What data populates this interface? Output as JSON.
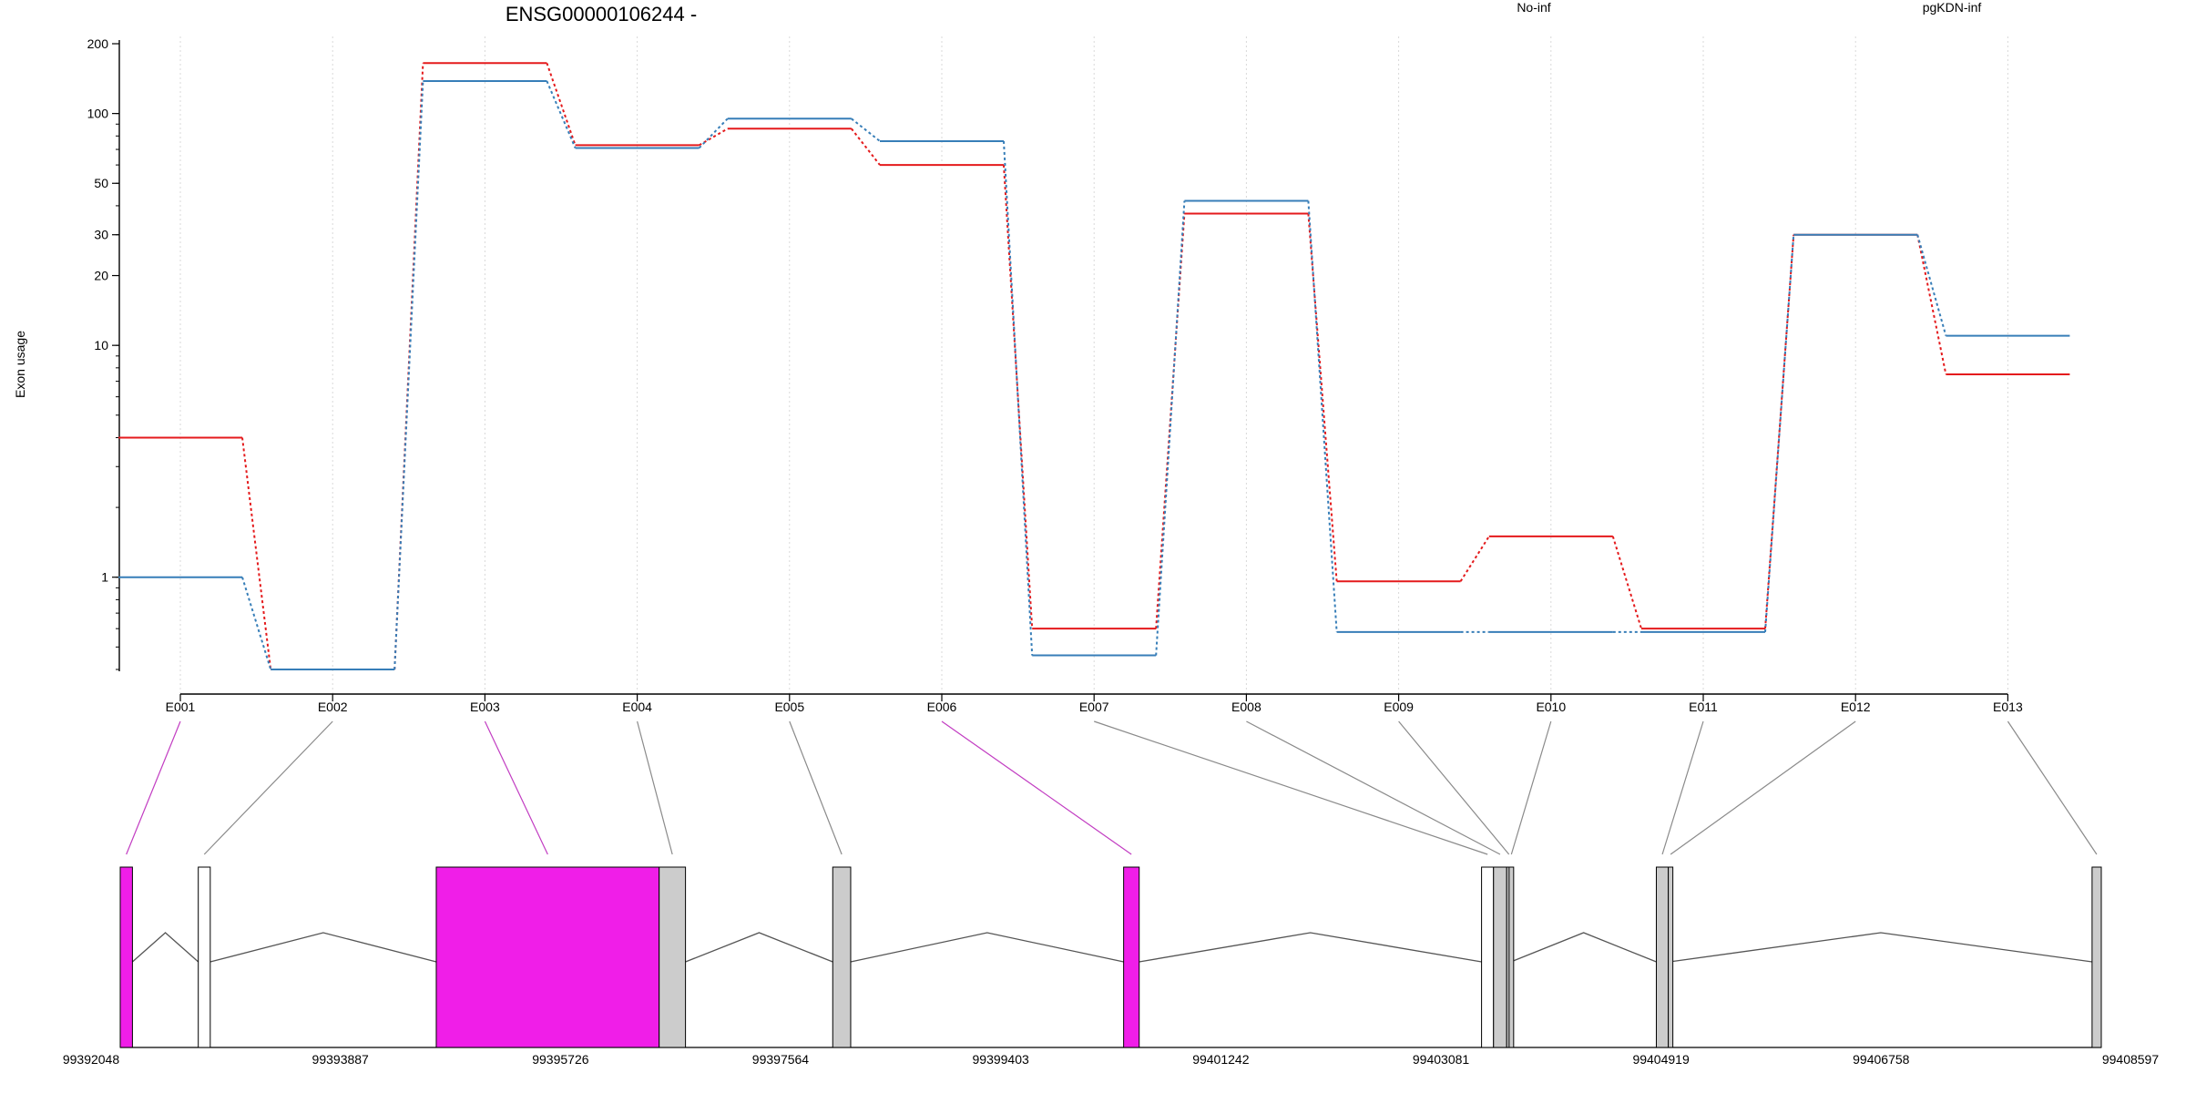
{
  "chart_data": {
    "type": "line",
    "title": "ENSG00000106244 -",
    "ylabel": "Exon usage",
    "xlabel": "",
    "yscale": "log",
    "ylim": [
      0.4,
      200
    ],
    "y_ticks": [
      1,
      10,
      20,
      30,
      50,
      100,
      200
    ],
    "y_tick_labels": [
      "1",
      "10",
      "20",
      "30",
      "50",
      "100",
      "200"
    ],
    "grid": "vertical-dotted",
    "legend_placement": "top",
    "categories": [
      "E001",
      "E002",
      "E003",
      "E004",
      "E005",
      "E006",
      "E007",
      "E008",
      "E009",
      "E010",
      "E011",
      "E012",
      "E013"
    ],
    "series": [
      {
        "name": "No-inf",
        "color": "#e41a1c",
        "values": [
          4.0,
          0.4,
          165,
          73,
          86,
          60,
          0.6,
          37,
          0.96,
          1.5,
          0.6,
          30,
          7.5
        ]
      },
      {
        "name": "pgKDN-inf",
        "color": "#377eb8",
        "values": [
          1.0,
          0.4,
          138,
          71,
          95,
          76,
          0.46,
          42,
          0.58,
          0.58,
          0.58,
          30,
          11
        ]
      }
    ],
    "gene_model": {
      "start": 99392048,
      "end": 99408597,
      "axis_ticks": [
        99392048,
        99393887,
        99395726,
        99397564,
        99399403,
        99401242,
        99403081,
        99404919,
        99406758,
        99408597
      ],
      "exon_colors": {
        "highlight": "#f01ee8",
        "default": "#cccccc",
        "outline": "#ffffff"
      },
      "exons": [
        {
          "id": "E001",
          "start": 99392048,
          "end": 99392150,
          "style": "highlight"
        },
        {
          "id": "E002",
          "start": 99392700,
          "end": 99392800,
          "style": "outline"
        },
        {
          "id": "E003",
          "start": 99394688,
          "end": 99396550,
          "style": "highlight"
        },
        {
          "id": "E004",
          "start": 99396550,
          "end": 99396770,
          "style": "default"
        },
        {
          "id": "E005",
          "start": 99398000,
          "end": 99398150,
          "style": "default"
        },
        {
          "id": "E006",
          "start": 99400430,
          "end": 99400560,
          "style": "highlight"
        },
        {
          "id": "E007",
          "start": 99403420,
          "end": 99403520,
          "style": "outline"
        },
        {
          "id": "E008",
          "start": 99403520,
          "end": 99403630,
          "style": "default"
        },
        {
          "id": "E009",
          "start": 99403630,
          "end": 99403650,
          "style": "default"
        },
        {
          "id": "E010",
          "start": 99403650,
          "end": 99403665,
          "style": "default"
        },
        {
          "id": "E011",
          "start": 99404880,
          "end": 99404980,
          "style": "default"
        },
        {
          "id": "E012",
          "start": 99404980,
          "end": 99404990,
          "style": "default"
        },
        {
          "id": "E013",
          "start": 99408520,
          "end": 99408597,
          "style": "default"
        }
      ]
    }
  }
}
